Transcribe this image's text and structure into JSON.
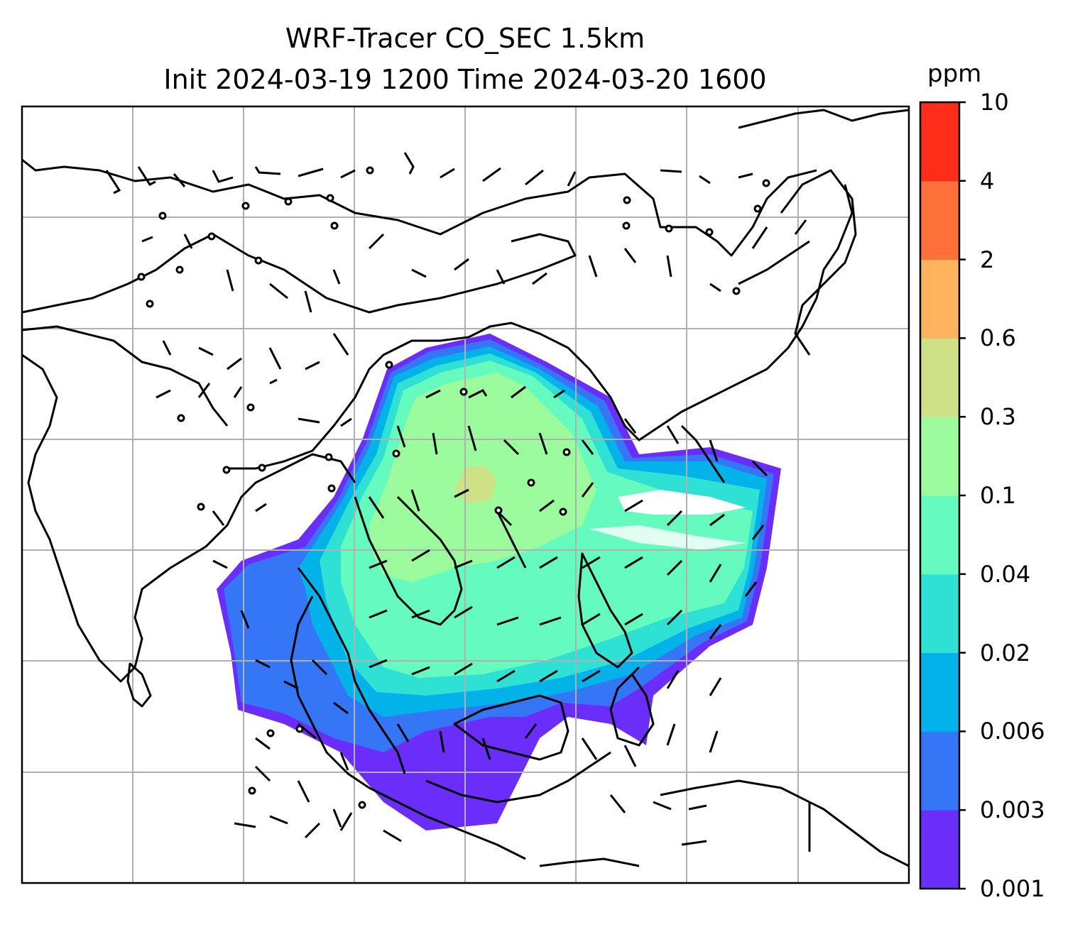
{
  "title_line1": "WRF-Tracer CO_SEC 1.5km",
  "title_line2": "Init 2024-03-19 1200 Time 2024-03-20 1600",
  "colorbar": {
    "unit": "ppm",
    "levels": [
      "0.001",
      "0.003",
      "0.006",
      "0.02",
      "0.04",
      "0.1",
      "0.3",
      "0.6",
      "2",
      "4",
      "10"
    ],
    "colors": [
      "#6a2dfa",
      "#3476f6",
      "#04b2ea",
      "#2fe0d5",
      "#66fbbe",
      "#9cfb9d",
      "#cfe187",
      "#feb35f",
      "#fe7039",
      "#fe2c18"
    ]
  },
  "map": {
    "type": "filled concentration map with wind barbs and coastlines",
    "gridlines": true,
    "plume_region": "Southeast Asia / South China Sea"
  }
}
